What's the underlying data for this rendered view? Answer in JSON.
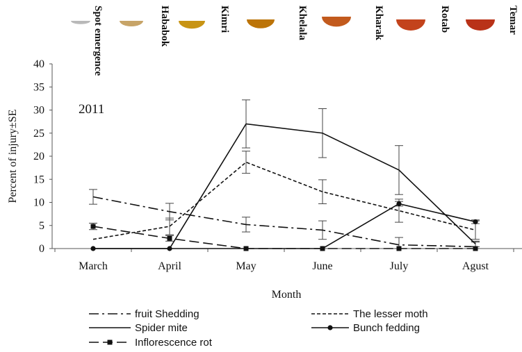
{
  "chart_data": {
    "type": "line",
    "annotation": "2011",
    "xlabel": "Month",
    "ylabel": "Percent of injury±SE",
    "ylim": [
      0,
      40
    ],
    "yticks": [
      0,
      5,
      10,
      15,
      20,
      25,
      30,
      35,
      40
    ],
    "categories": [
      "March",
      "April",
      "May",
      "June",
      "July",
      "Agust"
    ],
    "grid": false,
    "legend_position": "bottom",
    "series": [
      {
        "name": "fruit Shedding",
        "style": "dash-dot",
        "marker": "none",
        "values": [
          11.2,
          8.0,
          5.2,
          4.0,
          0.8,
          0.4
        ],
        "errors": [
          1.6,
          1.8,
          1.6,
          2.0,
          1.6,
          1.0
        ]
      },
      {
        "name": "The lesser moth",
        "style": "short-dash",
        "marker": "none",
        "values": [
          2.0,
          4.8,
          18.7,
          12.3,
          8.2,
          4.0
        ],
        "errors": [
          0,
          1.8,
          2.4,
          2.6,
          2.5,
          2.0
        ]
      },
      {
        "name": "Spider mite",
        "style": "solid",
        "marker": "none",
        "values": [
          0,
          0,
          27.0,
          25.0,
          17.0,
          1.0
        ],
        "errors": [
          0,
          0,
          5.2,
          5.3,
          5.3,
          0.6
        ]
      },
      {
        "name": "Bunch fedding",
        "style": "solid",
        "marker": "circle",
        "values": [
          0,
          0,
          0,
          0,
          9.7,
          5.8
        ],
        "errors": [
          0,
          0,
          0,
          0,
          0.5,
          0.4
        ]
      },
      {
        "name": "Inflorescence rot",
        "style": "long-dash",
        "marker": "square",
        "values": [
          4.8,
          2.2,
          0,
          0,
          0,
          0
        ],
        "errors": [
          0.7,
          0.6,
          0,
          0,
          0,
          0
        ]
      }
    ],
    "stages": [
      {
        "label": "Spot emergence",
        "color": "#b9b9b9"
      },
      {
        "label": "Hababok",
        "color": "#c7a468"
      },
      {
        "label": "Kimri",
        "color": "#c89414"
      },
      {
        "label": "Khelala",
        "color": "#bc7408"
      },
      {
        "label": "Kharak",
        "color": "#c25a1d"
      },
      {
        "label": "Rotab",
        "color": "#c3431c"
      },
      {
        "label": "Temar",
        "color": "#b93218"
      }
    ]
  }
}
